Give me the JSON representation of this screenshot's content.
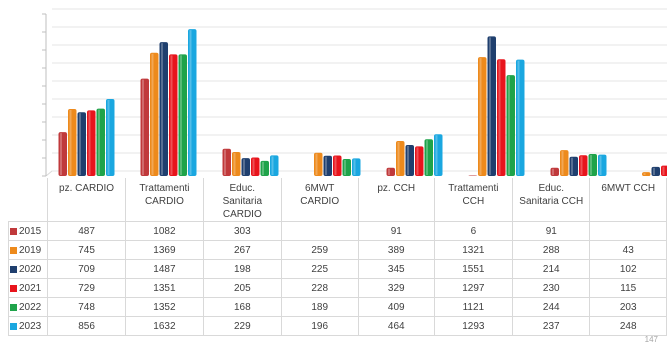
{
  "chart_data": {
    "type": "bar",
    "categories": [
      "pz. CARDIO",
      "Trattamenti CARDIO",
      "Educ. Sanitaria CARDIO",
      "6MWT CARDIO",
      "pz. CCH",
      "Trattamenti CCH",
      "Educ. Sanitaria CCH",
      "6MWT CCH"
    ],
    "category_lines": [
      [
        "pz. CARDIO"
      ],
      [
        "Trattamenti",
        "CARDIO"
      ],
      [
        "Educ.",
        "Sanitaria",
        "CARDIO"
      ],
      [
        "6MWT",
        "CARDIO"
      ],
      [
        "pz. CCH"
      ],
      [
        "Trattamenti",
        "CCH"
      ],
      [
        "Educ.",
        "Sanitaria CCH"
      ],
      [
        "6MWT CCH"
      ]
    ],
    "series": [
      {
        "name": "2015",
        "color": "#c0393b",
        "values": [
          487,
          1082,
          303,
          null,
          91,
          6,
          91,
          null
        ]
      },
      {
        "name": "2019",
        "color": "#ed8a1c",
        "values": [
          745,
          1369,
          267,
          259,
          389,
          1321,
          288,
          43
        ]
      },
      {
        "name": "2020",
        "color": "#1f3f6e",
        "values": [
          709,
          1487,
          198,
          225,
          345,
          1551,
          214,
          102
        ]
      },
      {
        "name": "2021",
        "color": "#e8141c",
        "values": [
          729,
          1351,
          205,
          228,
          329,
          1297,
          230,
          115
        ]
      },
      {
        "name": "2022",
        "color": "#1fa34a",
        "values": [
          748,
          1352,
          168,
          189,
          409,
          1121,
          244,
          203
        ]
      },
      {
        "name": "2023",
        "color": "#1aa7e0",
        "values": [
          856,
          1632,
          229,
          196,
          464,
          1293,
          237,
          248
        ]
      }
    ],
    "ylim": [
      0,
      1800
    ],
    "grid": true,
    "legend": "data-table"
  },
  "page_number": "147"
}
